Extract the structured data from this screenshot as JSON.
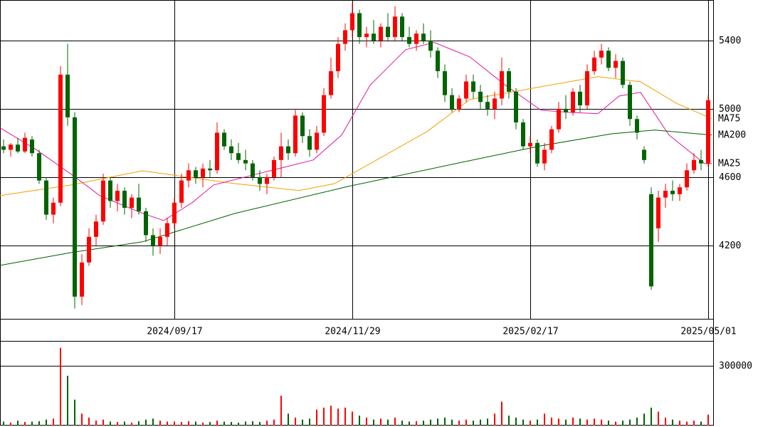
{
  "chart_data": [
    {
      "type": "candlestick",
      "categories": [
        null,
        null,
        null,
        null,
        null,
        null,
        null,
        null,
        null,
        null,
        null,
        null,
        null,
        null,
        null,
        null,
        null,
        null,
        null,
        null,
        null,
        null,
        null,
        null,
        "2024/09/17",
        null,
        null,
        null,
        null,
        null,
        null,
        null,
        null,
        null,
        null,
        null,
        null,
        null,
        null,
        null,
        null,
        null,
        null,
        null,
        null,
        null,
        null,
        null,
        null,
        "2024/11/29",
        null,
        null,
        null,
        null,
        null,
        null,
        null,
        null,
        null,
        null,
        null,
        null,
        null,
        null,
        null,
        null,
        null,
        null,
        null,
        null,
        null,
        null,
        null,
        null,
        "2025/02/17",
        null,
        null,
        null,
        null,
        null,
        null,
        null,
        null,
        null,
        null,
        null,
        null,
        null,
        null,
        null,
        null,
        null,
        null,
        null,
        null,
        null,
        null,
        null,
        null,
        "2025/05/01"
      ],
      "open": [
        4780,
        4760,
        4790,
        4750,
        4820,
        4740,
        4580,
        4380,
        4450,
        5200,
        4950,
        3900,
        4100,
        4250,
        4340,
        4580,
        4460,
        4520,
        4420,
        4480,
        4400,
        4260,
        4200,
        4250,
        4330,
        4450,
        4580,
        4640,
        4600,
        4650,
        4640,
        4860,
        4780,
        4740,
        4700,
        4680,
        4600,
        4560,
        4600,
        4700,
        4780,
        4740,
        4960,
        4840,
        4760,
        4860,
        5080,
        5220,
        5380,
        5460,
        5560,
        5420,
        5440,
        5400,
        5480,
        5420,
        5540,
        5420,
        5380,
        5440,
        5400,
        5340,
        5220,
        5080,
        5000,
        5060,
        5160,
        5100,
        5040,
        5000,
        5060,
        5220,
        5100,
        4920,
        4780,
        4800,
        4680,
        4760,
        4880,
        5000,
        4980,
        5100,
        5020,
        5220,
        5300,
        5340,
        5240,
        5280,
        5140,
        4940,
        4760,
        4500,
        4300,
        4480,
        4520,
        4500,
        4540,
        4640,
        4700,
        4680
      ],
      "high": [
        4820,
        4800,
        4830,
        4860,
        4840,
        4760,
        4600,
        4480,
        5250,
        5380,
        4980,
        4150,
        4300,
        4380,
        4620,
        4600,
        4560,
        4540,
        4500,
        4560,
        4420,
        4300,
        4300,
        4360,
        4480,
        4620,
        4680,
        4660,
        4680,
        4700,
        4920,
        4880,
        4820,
        4800,
        4760,
        4700,
        4640,
        4620,
        4720,
        4860,
        4820,
        5000,
        4980,
        4880,
        4900,
        5120,
        5300,
        5420,
        5500,
        5620,
        5580,
        5480,
        5520,
        5500,
        5560,
        5600,
        5560,
        5480,
        5460,
        5500,
        5460,
        5360,
        5260,
        5120,
        5080,
        5200,
        5200,
        5140,
        5080,
        5100,
        5300,
        5240,
        5120,
        4940,
        4840,
        4820,
        4800,
        4900,
        5040,
        5080,
        5120,
        5140,
        5260,
        5340,
        5380,
        5360,
        5320,
        5300,
        5160,
        4960,
        4780,
        4540,
        4520,
        4560,
        4580,
        4560,
        4680,
        4740,
        4760,
        5080
      ],
      "low": [
        4740,
        4720,
        4740,
        4740,
        4720,
        4560,
        4350,
        4330,
        4430,
        4900,
        3830,
        3850,
        4080,
        4200,
        4320,
        4420,
        4400,
        4380,
        4360,
        4380,
        4220,
        4140,
        4150,
        4200,
        4300,
        4420,
        4540,
        4560,
        4540,
        4600,
        4620,
        4760,
        4700,
        4680,
        4640,
        4580,
        4520,
        4500,
        4580,
        4600,
        4700,
        4720,
        4800,
        4720,
        4740,
        4840,
        5060,
        5180,
        5340,
        5420,
        5380,
        5360,
        5380,
        5360,
        5400,
        5400,
        5400,
        5360,
        5340,
        5380,
        5300,
        5180,
        5040,
        4980,
        4980,
        5040,
        5060,
        5000,
        4960,
        4940,
        5020,
        5060,
        4880,
        4760,
        4740,
        4660,
        4640,
        4740,
        4860,
        4940,
        4960,
        4980,
        5000,
        5200,
        5260,
        5220,
        5180,
        5120,
        4900,
        4820,
        4680,
        3940,
        4220,
        4420,
        4460,
        4460,
        4520,
        4620,
        4640,
        4660
      ],
      "close": [
        4760,
        4790,
        4750,
        4830,
        4740,
        4580,
        4380,
        4450,
        5200,
        4950,
        3900,
        4100,
        4250,
        4340,
        4580,
        4460,
        4520,
        4420,
        4480,
        4400,
        4260,
        4200,
        4250,
        4330,
        4450,
        4580,
        4640,
        4600,
        4650,
        4640,
        4860,
        4780,
        4740,
        4700,
        4680,
        4600,
        4560,
        4600,
        4700,
        4780,
        4740,
        4960,
        4840,
        4760,
        4860,
        5080,
        5220,
        5380,
        5460,
        5560,
        5420,
        5440,
        5400,
        5480,
        5420,
        5540,
        5420,
        5380,
        5440,
        5400,
        5340,
        5220,
        5080,
        5000,
        5060,
        5160,
        5100,
        5040,
        5000,
        5060,
        5220,
        5100,
        4920,
        4780,
        4800,
        4680,
        4760,
        4880,
        5000,
        4980,
        5100,
        5020,
        5220,
        5300,
        5340,
        5240,
        5280,
        5140,
        4940,
        4860,
        4700,
        3960,
        4480,
        4520,
        4500,
        4540,
        4640,
        4700,
        4680,
        5050
      ],
      "up_color": "#ff0000",
      "down_color": "#006400",
      "xlim": [
        -0.5,
        99.8
      ],
      "ylim": [
        3770,
        5637
      ],
      "yticks": [
        4200,
        4600,
        5000,
        5400
      ],
      "series": [
        {
          "name": "MA75",
          "color": "#f0a000",
          "x": [
            -0.5,
            9.5,
            19.5,
            32.5,
            41.5,
            46.5,
            51.5,
            59.5,
            65.5,
            75.5,
            83.5,
            89.5,
            94.5,
            99.5
          ],
          "values": [
            4492,
            4554,
            4637,
            4562,
            4521,
            4562,
            4679,
            4867,
            5054,
            5129,
            5188,
            5158,
            5033,
            4942
          ]
        },
        {
          "name": "MA25",
          "color": "#e0189e",
          "x": [
            -0.5,
            4.5,
            9.5,
            13.5,
            19.5,
            22.5,
            26.5,
            29.5,
            35.5,
            43.5,
            47.5,
            51.5,
            56.5,
            60.5,
            65.5,
            70.5,
            75.5,
            79.5,
            83.5,
            86.5,
            89.5,
            93.5,
            98.5,
            99.5
          ],
          "values": [
            4888,
            4763,
            4617,
            4492,
            4388,
            4346,
            4450,
            4554,
            4617,
            4700,
            4846,
            5138,
            5346,
            5388,
            5304,
            5138,
            4992,
            4979,
            4971,
            5075,
            5096,
            4846,
            4679,
            4679
          ]
        },
        {
          "name": "MA200",
          "color": "#006000",
          "x": [
            -0.5,
            9.5,
            19.5,
            32.5,
            48.5,
            63.5,
            75.5,
            85.5,
            91.5,
            99.5
          ],
          "values": [
            4083,
            4158,
            4221,
            4387,
            4546,
            4679,
            4783,
            4854,
            4875,
            4846
          ]
        }
      ]
    },
    {
      "type": "bar",
      "values": [
        20000,
        15000,
        25000,
        18000,
        20000,
        22000,
        30000,
        35000,
        390000,
        250000,
        130000,
        60000,
        40000,
        25000,
        30000,
        20000,
        18000,
        20000,
        15000,
        22000,
        30000,
        35000,
        25000,
        20000,
        20000,
        18000,
        22000,
        20000,
        15000,
        18000,
        25000,
        20000,
        18000,
        15000,
        20000,
        22000,
        18000,
        25000,
        30000,
        150000,
        60000,
        40000,
        30000,
        35000,
        80000,
        90000,
        100000,
        85000,
        90000,
        70000,
        50000,
        40000,
        30000,
        35000,
        30000,
        40000,
        25000,
        20000,
        22000,
        25000,
        30000,
        35000,
        40000,
        30000,
        25000,
        30000,
        25000,
        30000,
        35000,
        60000,
        120000,
        50000,
        40000,
        30000,
        25000,
        30000,
        60000,
        40000,
        35000,
        30000,
        40000,
        35000,
        30000,
        35000,
        30000,
        25000,
        20000,
        25000,
        30000,
        40000,
        60000,
        90000,
        70000,
        40000,
        30000,
        25000,
        20000,
        25000,
        20000,
        55000
      ],
      "ylim": [
        0,
        421400
      ],
      "yticks": [
        300000
      ]
    }
  ]
}
